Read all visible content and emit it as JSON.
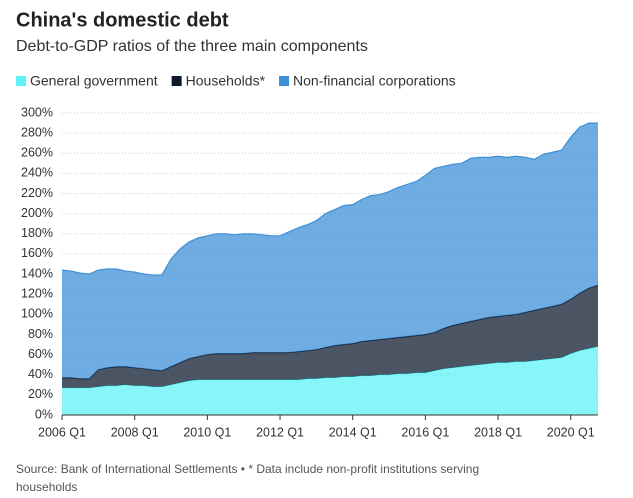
{
  "chart_data": {
    "type": "stacked_area",
    "title": "China's domestic debt",
    "subtitle": "Debt-to-GDP ratios of the three main components",
    "source": "Source: Bank of International Settlements • * Data include non-profit institutions serving households",
    "categories": [
      "2006 Q1",
      null,
      null,
      null,
      null,
      null,
      null,
      null,
      "2008 Q1",
      null,
      null,
      null,
      null,
      null,
      null,
      null,
      "2010 Q1",
      null,
      null,
      null,
      null,
      null,
      null,
      null,
      "2012 Q1",
      null,
      null,
      null,
      null,
      null,
      null,
      null,
      "2014 Q1",
      null,
      null,
      null,
      null,
      null,
      null,
      null,
      "2016 Q1",
      null,
      null,
      null,
      null,
      null,
      null,
      null,
      "2018 Q1",
      null,
      null,
      null,
      null,
      null,
      null,
      null,
      "2020 Q1",
      null,
      null,
      null
    ],
    "series": [
      {
        "name": "General government",
        "color": "#5ff3f5",
        "values": [
          27,
          27,
          27,
          27,
          28,
          29,
          29,
          30,
          29,
          29,
          28,
          28,
          30,
          32,
          34,
          35,
          35,
          35,
          35,
          35,
          35,
          35,
          35,
          35,
          35,
          35,
          35,
          36,
          36,
          37,
          37,
          38,
          38,
          39,
          39,
          40,
          40,
          41,
          41,
          42,
          42,
          44,
          46,
          47,
          48,
          49,
          50,
          51,
          52,
          52,
          53,
          53,
          54,
          55,
          56,
          57,
          61,
          64,
          66,
          68
        ]
      },
      {
        "name": "Households*",
        "color": "#0e1a2c",
        "values": [
          10,
          10,
          9,
          9,
          17,
          18,
          19,
          18,
          18,
          17,
          17,
          16,
          18,
          20,
          22,
          23,
          25,
          26,
          26,
          26,
          26,
          27,
          27,
          27,
          27,
          27,
          28,
          28,
          29,
          30,
          32,
          32,
          33,
          34,
          35,
          35,
          36,
          36,
          37,
          37,
          38,
          38,
          40,
          42,
          43,
          44,
          45,
          46,
          46,
          47,
          47,
          49,
          50,
          51,
          52,
          53,
          54,
          57,
          60,
          61
        ]
      },
      {
        "name": "Non-financial corporations",
        "color": "#3d8fd6",
        "values": [
          107,
          106,
          105,
          104,
          99,
          98,
          97,
          95,
          95,
          94,
          94,
          95,
          107,
          113,
          116,
          118,
          118,
          119,
          119,
          118,
          119,
          118,
          117,
          116,
          116,
          120,
          123,
          125,
          128,
          133,
          135,
          138,
          138,
          141,
          144,
          144,
          146,
          149,
          151,
          153,
          158,
          163,
          161,
          160,
          159,
          162,
          161,
          159,
          159,
          157,
          157,
          154,
          150,
          153,
          153,
          153,
          161,
          165,
          164,
          161
        ]
      }
    ],
    "ylim": [
      0,
      300
    ],
    "yticks": [
      {
        "value": 0,
        "label": "0%"
      },
      {
        "value": 20,
        "label": "20%"
      },
      {
        "value": 40,
        "label": "40%"
      },
      {
        "value": 60,
        "label": "60%"
      },
      {
        "value": 80,
        "label": "80%"
      },
      {
        "value": 100,
        "label": "100%"
      },
      {
        "value": 120,
        "label": "120%"
      },
      {
        "value": 140,
        "label": "140%"
      },
      {
        "value": 160,
        "label": "160%"
      },
      {
        "value": 180,
        "label": "180%"
      },
      {
        "value": 200,
        "label": "200%"
      },
      {
        "value": 220,
        "label": "220%"
      },
      {
        "value": 240,
        "label": "240%"
      },
      {
        "value": 260,
        "label": "260%"
      },
      {
        "value": 280,
        "label": "280%"
      },
      {
        "value": 300,
        "label": "300%"
      }
    ],
    "grid": true,
    "legend": "top"
  }
}
